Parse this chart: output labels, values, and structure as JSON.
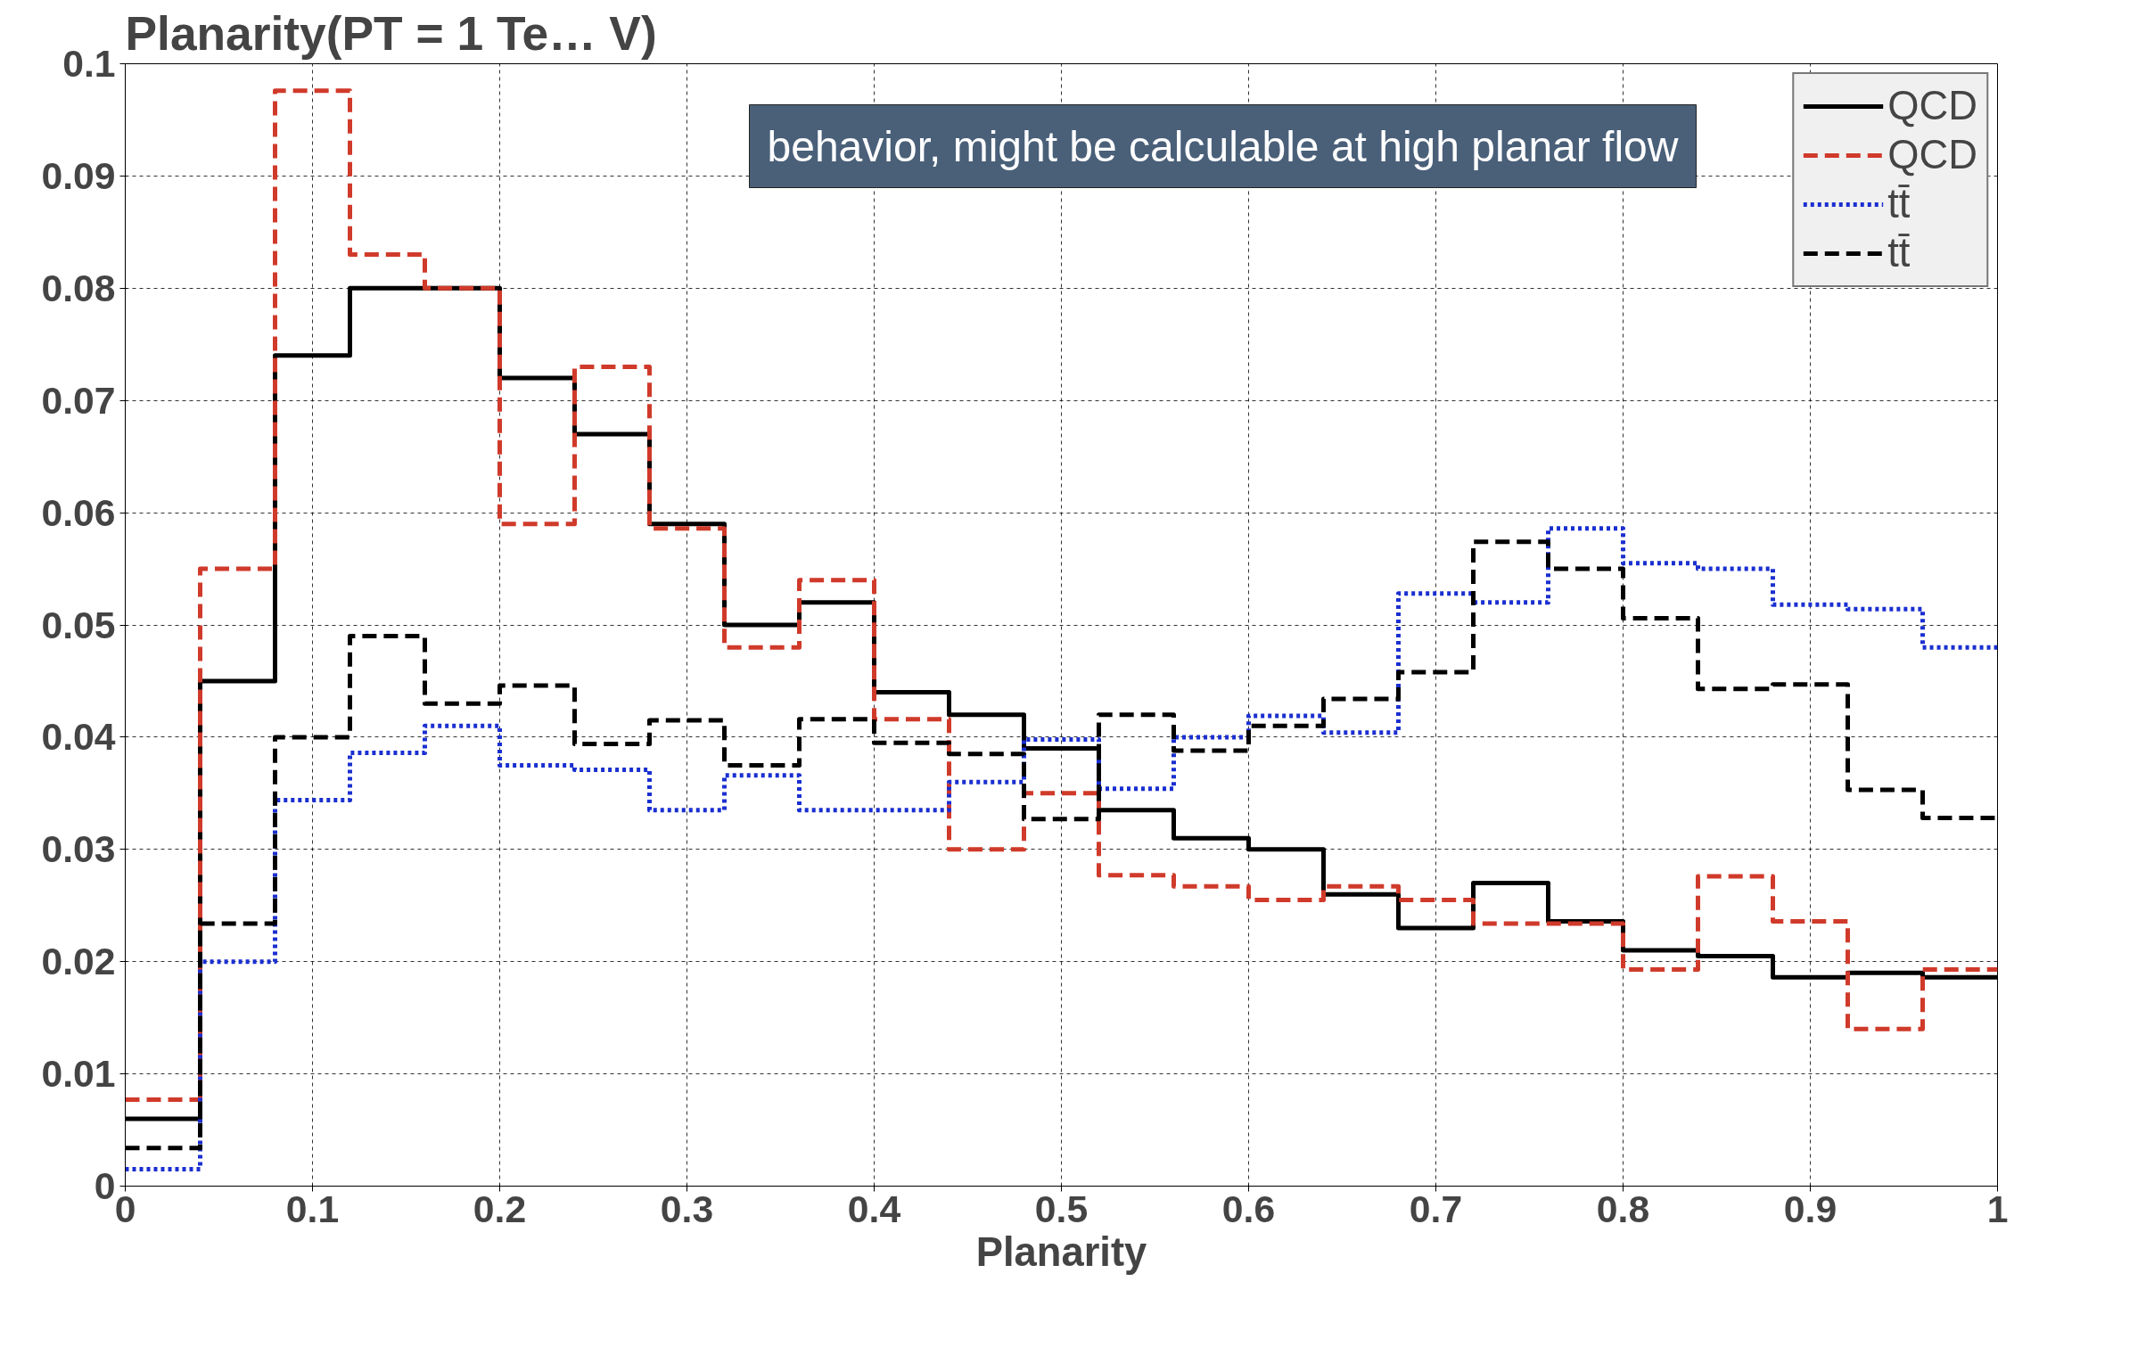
{
  "chart_data": {
    "type": "histogram",
    "title": "Planarity(PT = 1 Te… V)",
    "xlabel": "Planarity",
    "bins": [
      0,
      0.04,
      0.08,
      0.12,
      0.16,
      0.2,
      0.24,
      0.28,
      0.32,
      0.36,
      0.4,
      0.44,
      0.48,
      0.52,
      0.56,
      0.6,
      0.64,
      0.68,
      0.72,
      0.76,
      0.8,
      0.84,
      0.88,
      0.92,
      0.96,
      1
    ],
    "series": [
      {
        "name": "QCD",
        "color": "#000000",
        "line_style": "solid",
        "values": [
          0.006,
          0.045,
          0.074,
          0.08,
          0.08,
          0.072,
          0.067,
          0.059,
          0.05,
          0.052,
          0.044,
          0.042,
          0.039,
          0.0335,
          0.031,
          0.03,
          0.026,
          0.023,
          0.027,
          0.0236,
          0.021,
          0.0205,
          0.0186,
          0.019,
          0.0186
        ]
      },
      {
        "name": "QCD",
        "color": "#d03a2a",
        "line_style": "dashed",
        "values": [
          0.0077,
          0.055,
          0.0976,
          0.083,
          0.08,
          0.059,
          0.073,
          0.0586,
          0.048,
          0.054,
          0.0416,
          0.03,
          0.035,
          0.0277,
          0.0267,
          0.0255,
          0.0267,
          0.0255,
          0.0234,
          0.0234,
          0.0193,
          0.0276,
          0.0236,
          0.014,
          0.0193
        ]
      },
      {
        "name": "tt̄",
        "color": "#1a2fd0",
        "line_style": "dotted",
        "values": [
          0.0015,
          0.02,
          0.0344,
          0.0386,
          0.041,
          0.0375,
          0.0371,
          0.0335,
          0.0366,
          0.0335,
          0.0335,
          0.036,
          0.0398,
          0.0354,
          0.04,
          0.0419,
          0.0404,
          0.0528,
          0.052,
          0.0586,
          0.0555,
          0.055,
          0.0518,
          0.0514,
          0.048
        ]
      },
      {
        "name": "tt̄",
        "color": "#000000",
        "line_style": "dashed",
        "values": [
          0.0034,
          0.0234,
          0.04,
          0.049,
          0.043,
          0.0446,
          0.0394,
          0.0415,
          0.0375,
          0.0416,
          0.0395,
          0.0385,
          0.0327,
          0.042,
          0.0388,
          0.041,
          0.0434,
          0.0458,
          0.0574,
          0.055,
          0.0506,
          0.0443,
          0.0447,
          0.0353,
          0.0328
        ]
      }
    ],
    "xlim": [
      0,
      1
    ],
    "xticks": [
      0,
      0.1,
      0.2,
      0.3,
      0.4,
      0.5,
      0.6,
      0.7,
      0.8,
      0.9,
      1
    ],
    "ylim": [
      0,
      0.1
    ],
    "yticks": [
      0,
      0.01,
      0.02,
      0.03,
      0.04,
      0.05,
      0.06,
      0.07,
      0.08,
      0.09,
      0.1
    ],
    "grid": true,
    "legend": "top right",
    "annotations": [
      "behavior, might be calculable at high planar flow"
    ]
  }
}
